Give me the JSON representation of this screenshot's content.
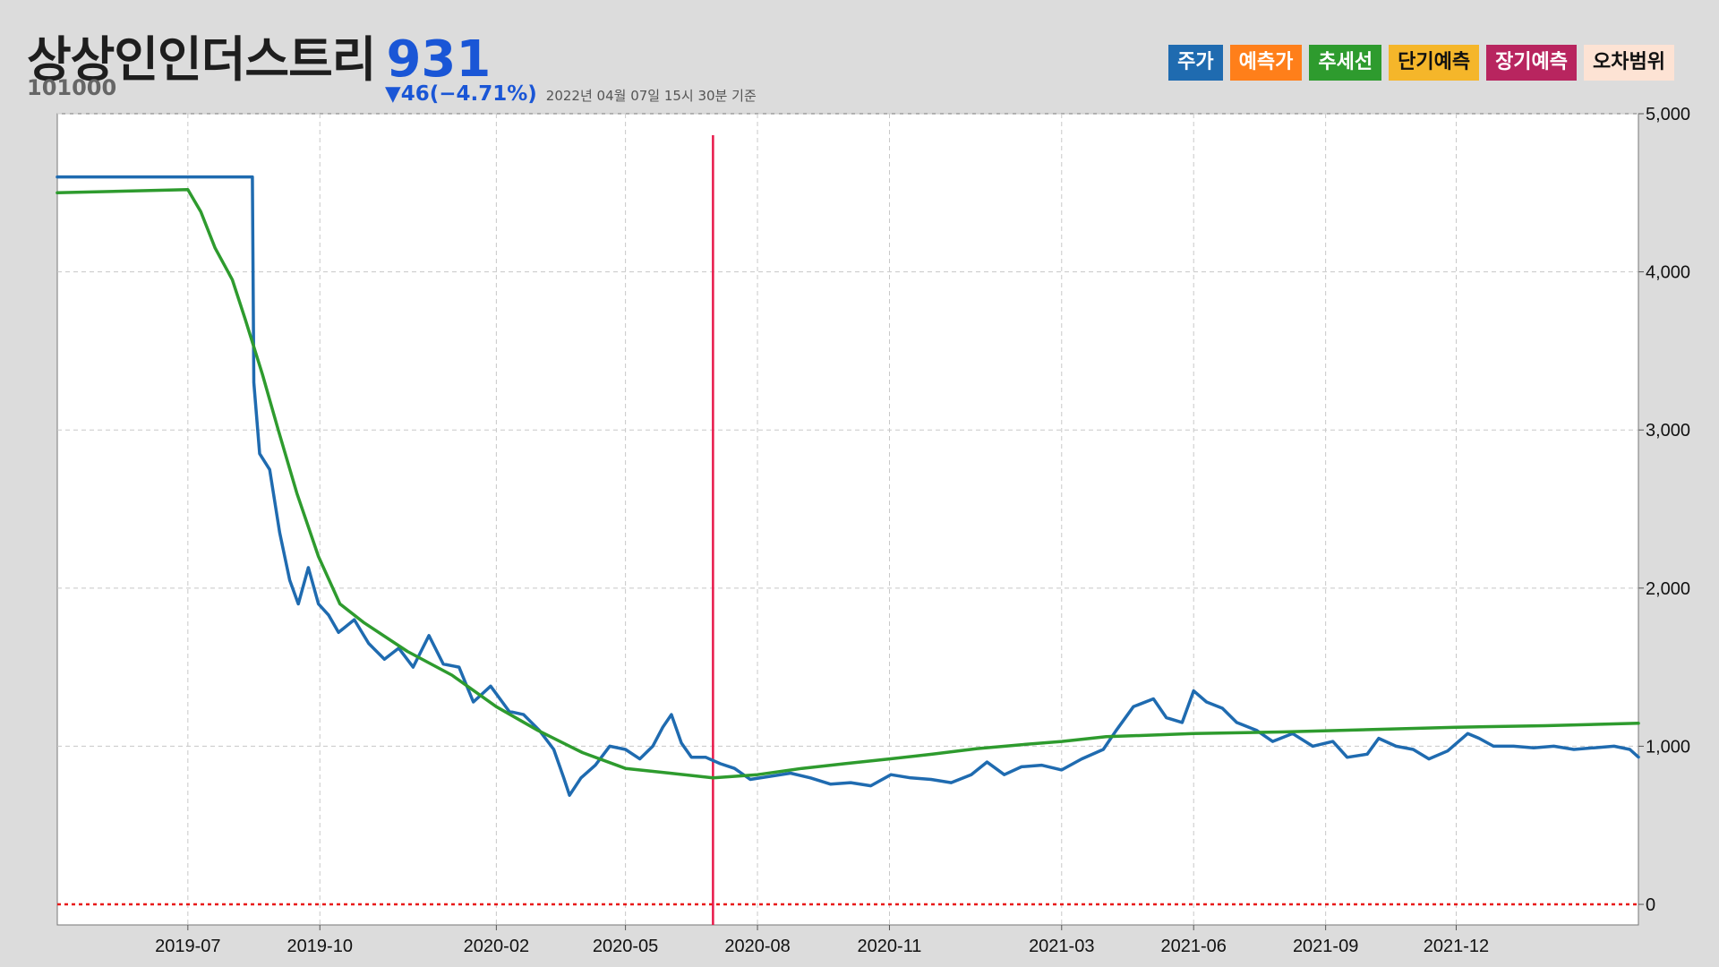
{
  "header": {
    "company_name": "상상인인더스트리",
    "price": "931",
    "code": "101000",
    "change": "▼46(−4.71%)",
    "timestamp": "2022년 04월 07일 15시 30분 기준"
  },
  "legend": [
    {
      "label": "주가",
      "color": "#1f6bb0",
      "text_color": "#ffffff"
    },
    {
      "label": "예측가",
      "color": "#ff7f1a",
      "text_color": "#ffffff"
    },
    {
      "label": "추세선",
      "color": "#2e9b2e",
      "text_color": "#ffffff"
    },
    {
      "label": "단기예측",
      "color": "#f5b62a",
      "text_color": "#111111"
    },
    {
      "label": "장기예측",
      "color": "#b8255f",
      "text_color": "#ffffff"
    },
    {
      "label": "오차범위",
      "color": "#fde3d4",
      "text_color": "#111111"
    }
  ],
  "chart_data": {
    "type": "line",
    "x_range": [
      "2019-04-01",
      "2022-04-07"
    ],
    "ylim": [
      -130,
      5000
    ],
    "y_axis_side": "right",
    "y_ticks": [
      "5,000",
      "4,000",
      "3,000",
      "2,000",
      "1,000",
      "0"
    ],
    "y_tick_values": [
      5000,
      4000,
      3000,
      2000,
      1000,
      0
    ],
    "x_ticks": [
      "2019-07",
      "2019-10",
      "2020-02",
      "2020-05",
      "2020-08",
      "2020-11",
      "2021-03",
      "2021-06",
      "2021-09",
      "2021-12"
    ],
    "x_tick_dates": [
      "2019-07-01",
      "2019-10-01",
      "2020-02-01",
      "2020-05-01",
      "2020-08-01",
      "2020-11-01",
      "2021-03-01",
      "2021-06-01",
      "2021-09-01",
      "2021-12-01"
    ],
    "grid": true,
    "legend_position": "top-right",
    "series": [
      {
        "name": "주가",
        "color": "#1f6bb0",
        "points": [
          [
            "2019-04-01",
            4600
          ],
          [
            "2019-08-15",
            4600
          ],
          [
            "2019-08-16",
            3300
          ],
          [
            "2019-08-20",
            2850
          ],
          [
            "2019-08-27",
            2750
          ],
          [
            "2019-09-03",
            2350
          ],
          [
            "2019-09-10",
            2050
          ],
          [
            "2019-09-16",
            1900
          ],
          [
            "2019-09-23",
            2130
          ],
          [
            "2019-09-30",
            1900
          ],
          [
            "2019-10-07",
            1830
          ],
          [
            "2019-10-14",
            1720
          ],
          [
            "2019-10-25",
            1800
          ],
          [
            "2019-11-04",
            1650
          ],
          [
            "2019-11-15",
            1550
          ],
          [
            "2019-11-25",
            1620
          ],
          [
            "2019-12-05",
            1500
          ],
          [
            "2019-12-16",
            1700
          ],
          [
            "2019-12-26",
            1520
          ],
          [
            "2020-01-06",
            1500
          ],
          [
            "2020-01-16",
            1280
          ],
          [
            "2020-01-28",
            1380
          ],
          [
            "2020-02-10",
            1220
          ],
          [
            "2020-02-20",
            1200
          ],
          [
            "2020-03-02",
            1100
          ],
          [
            "2020-03-12",
            980
          ],
          [
            "2020-03-19",
            800
          ],
          [
            "2020-03-23",
            690
          ],
          [
            "2020-03-31",
            800
          ],
          [
            "2020-04-10",
            880
          ],
          [
            "2020-04-20",
            1000
          ],
          [
            "2020-05-01",
            980
          ],
          [
            "2020-05-11",
            920
          ],
          [
            "2020-05-20",
            1000
          ],
          [
            "2020-05-27",
            1120
          ],
          [
            "2020-06-02",
            1200
          ],
          [
            "2020-06-09",
            1020
          ],
          [
            "2020-06-16",
            930
          ],
          [
            "2020-06-26",
            930
          ],
          [
            "2020-07-06",
            890
          ],
          [
            "2020-07-16",
            860
          ],
          [
            "2020-07-27",
            790
          ],
          [
            "2020-08-10",
            810
          ],
          [
            "2020-08-24",
            830
          ],
          [
            "2020-09-07",
            800
          ],
          [
            "2020-09-21",
            760
          ],
          [
            "2020-10-05",
            770
          ],
          [
            "2020-10-19",
            750
          ],
          [
            "2020-11-02",
            820
          ],
          [
            "2020-11-16",
            800
          ],
          [
            "2020-11-30",
            790
          ],
          [
            "2020-12-14",
            770
          ],
          [
            "2020-12-28",
            820
          ],
          [
            "2021-01-08",
            900
          ],
          [
            "2021-01-20",
            820
          ],
          [
            "2021-02-01",
            870
          ],
          [
            "2021-02-15",
            880
          ],
          [
            "2021-03-01",
            850
          ],
          [
            "2021-03-15",
            920
          ],
          [
            "2021-03-30",
            980
          ],
          [
            "2021-04-08",
            1100
          ],
          [
            "2021-04-20",
            1250
          ],
          [
            "2021-05-04",
            1300
          ],
          [
            "2021-05-13",
            1180
          ],
          [
            "2021-05-24",
            1150
          ],
          [
            "2021-06-01",
            1350
          ],
          [
            "2021-06-10",
            1280
          ],
          [
            "2021-06-21",
            1240
          ],
          [
            "2021-07-01",
            1150
          ],
          [
            "2021-07-15",
            1100
          ],
          [
            "2021-07-26",
            1030
          ],
          [
            "2021-08-09",
            1080
          ],
          [
            "2021-08-23",
            1000
          ],
          [
            "2021-09-06",
            1030
          ],
          [
            "2021-09-16",
            930
          ],
          [
            "2021-09-30",
            950
          ],
          [
            "2021-10-08",
            1050
          ],
          [
            "2021-10-20",
            1000
          ],
          [
            "2021-11-01",
            980
          ],
          [
            "2021-11-12",
            920
          ],
          [
            "2021-11-25",
            970
          ],
          [
            "2021-12-09",
            1080
          ],
          [
            "2021-12-17",
            1050
          ],
          [
            "2021-12-27",
            1000
          ],
          [
            "2022-01-10",
            1000
          ],
          [
            "2022-01-24",
            990
          ],
          [
            "2022-02-07",
            1000
          ],
          [
            "2022-02-21",
            980
          ],
          [
            "2022-03-07",
            990
          ],
          [
            "2022-03-21",
            1000
          ],
          [
            "2022-04-01",
            980
          ],
          [
            "2022-04-07",
            931
          ]
        ]
      },
      {
        "name": "추세선",
        "color": "#2e9b2e",
        "points": [
          [
            "2019-04-01",
            4500
          ],
          [
            "2019-07-01",
            4520
          ],
          [
            "2019-07-10",
            4380
          ],
          [
            "2019-07-20",
            4150
          ],
          [
            "2019-08-01",
            3950
          ],
          [
            "2019-08-10",
            3700
          ],
          [
            "2019-08-22",
            3350
          ],
          [
            "2019-09-02",
            3000
          ],
          [
            "2019-09-15",
            2600
          ],
          [
            "2019-09-30",
            2200
          ],
          [
            "2019-10-15",
            1900
          ],
          [
            "2019-11-01",
            1780
          ],
          [
            "2019-12-01",
            1600
          ],
          [
            "2020-01-01",
            1450
          ],
          [
            "2020-02-01",
            1250
          ],
          [
            "2020-03-01",
            1100
          ],
          [
            "2020-04-01",
            960
          ],
          [
            "2020-05-01",
            860
          ],
          [
            "2020-06-01",
            830
          ],
          [
            "2020-07-01",
            800
          ],
          [
            "2020-08-01",
            820
          ],
          [
            "2020-09-01",
            860
          ],
          [
            "2020-10-01",
            890
          ],
          [
            "2020-11-01",
            920
          ],
          [
            "2020-12-01",
            950
          ],
          [
            "2021-01-01",
            985
          ],
          [
            "2021-02-01",
            1010
          ],
          [
            "2021-03-01",
            1030
          ],
          [
            "2021-04-01",
            1060
          ],
          [
            "2021-06-01",
            1080
          ],
          [
            "2021-08-01",
            1090
          ],
          [
            "2021-10-01",
            1105
          ],
          [
            "2021-12-01",
            1120
          ],
          [
            "2022-02-01",
            1130
          ],
          [
            "2022-04-07",
            1145
          ]
        ]
      }
    ],
    "vertical_marker": {
      "date": "2020-07-01",
      "color": "#e8194a"
    },
    "zero_line": {
      "value": 0,
      "color": "#e81919",
      "style": "dotted"
    }
  }
}
